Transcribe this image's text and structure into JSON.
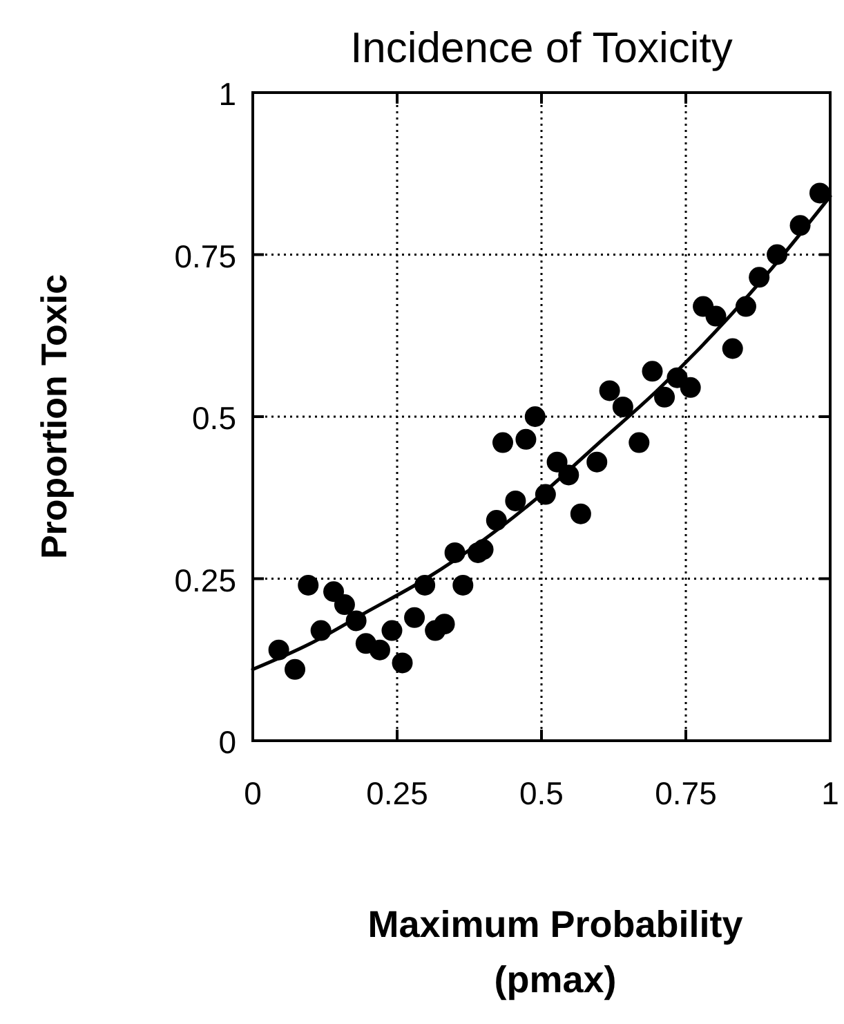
{
  "chart_data": {
    "type": "scatter",
    "title": "Incidence of Toxicity",
    "xlabel": "Maximum Probability\n(pmax)",
    "ylabel": "Proportion Toxic",
    "xlim": [
      0,
      1
    ],
    "ylim": [
      0,
      1
    ],
    "xticks": [
      0,
      0.25,
      0.5,
      0.75,
      1
    ],
    "yticks": [
      0,
      0.25,
      0.5,
      0.75,
      1
    ],
    "grid": true,
    "series": [
      {
        "color": "#000000",
        "marker": "circle",
        "x": [
          0.045,
          0.073,
          0.096,
          0.118,
          0.14,
          0.159,
          0.179,
          0.196,
          0.22,
          0.241,
          0.259,
          0.28,
          0.298,
          0.316,
          0.332,
          0.35,
          0.364,
          0.39,
          0.399,
          0.422,
          0.433,
          0.455,
          0.473,
          0.489,
          0.507,
          0.527,
          0.547,
          0.568,
          0.596,
          0.618,
          0.641,
          0.669,
          0.692,
          0.713,
          0.735,
          0.758,
          0.78,
          0.802,
          0.831,
          0.854,
          0.877,
          0.908,
          0.948,
          0.982
        ],
        "values": [
          0.14,
          0.11,
          0.24,
          0.17,
          0.23,
          0.21,
          0.185,
          0.15,
          0.14,
          0.17,
          0.12,
          0.19,
          0.24,
          0.17,
          0.18,
          0.29,
          0.24,
          0.29,
          0.295,
          0.34,
          0.46,
          0.37,
          0.465,
          0.5,
          0.38,
          0.43,
          0.41,
          0.35,
          0.43,
          0.54,
          0.515,
          0.46,
          0.57,
          0.53,
          0.56,
          0.545,
          0.67,
          0.655,
          0.605,
          0.67,
          0.715,
          0.75,
          0.795,
          0.845
        ]
      },
      {
        "type": "line",
        "color": "#000000",
        "marker": "none",
        "line_style": "solid",
        "x": [
          0,
          0.1,
          0.2,
          0.3,
          0.4,
          0.5,
          0.6,
          0.7,
          0.8,
          0.9,
          1
        ],
        "values": [
          0.11,
          0.15,
          0.2,
          0.25,
          0.31,
          0.38,
          0.46,
          0.54,
          0.63,
          0.73,
          0.84
        ]
      }
    ]
  }
}
